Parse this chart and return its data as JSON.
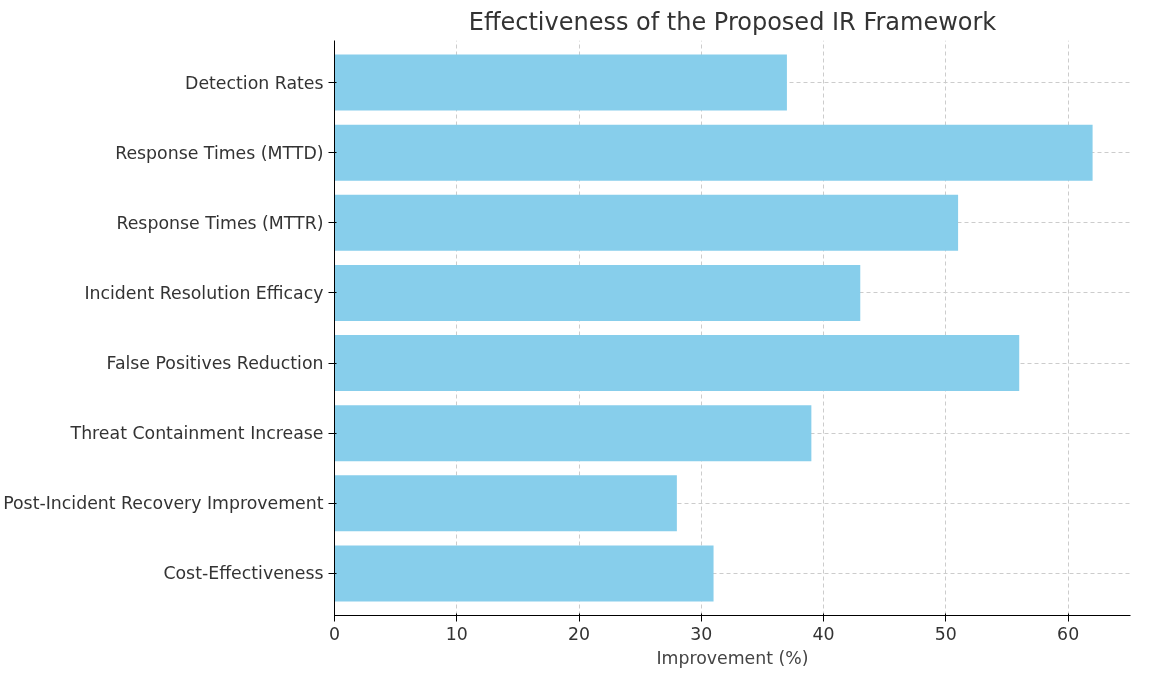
{
  "chart_data": {
    "type": "bar",
    "orientation": "horizontal",
    "title": "Effectiveness of the Proposed IR Framework",
    "categories": [
      "Detection Rates",
      "Response Times (MTTD)",
      "Response Times (MTTR)",
      "Incident Resolution Efficacy",
      "False Positives Reduction",
      "Threat Containment Increase",
      "Post-Incident Recovery Improvement",
      "Cost-Effectiveness"
    ],
    "values": [
      37,
      62,
      51,
      43,
      56,
      39,
      28,
      31
    ],
    "color": "#87ceeb",
    "xlabel": "Improvement (%)",
    "xlim": [
      0,
      65.1
    ],
    "xticks": [
      0,
      10,
      20,
      30,
      40,
      50,
      60
    ],
    "grid": true
  }
}
